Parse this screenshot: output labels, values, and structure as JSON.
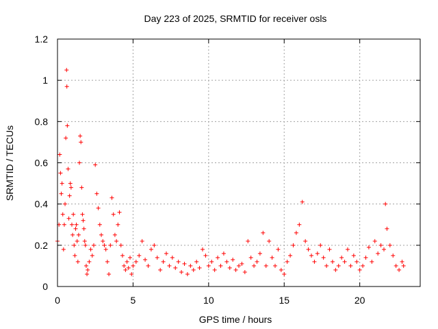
{
  "chart_data": {
    "type": "scatter",
    "title": "Day 223 of 2025, SRMTID for receiver osls",
    "xlabel": "GPS time / hours",
    "ylabel": "SRMTID / TECUs",
    "xlim": [
      0,
      24
    ],
    "ylim": [
      0,
      1.2
    ],
    "x_ticks": [
      0,
      5,
      10,
      15,
      20
    ],
    "x_tick_labels": [
      "0",
      "5",
      "10",
      "15",
      "20"
    ],
    "y_ticks": [
      0,
      0.2,
      0.4,
      0.6,
      0.8,
      1.0,
      1.2
    ],
    "y_tick_labels": [
      "0",
      "0.2",
      "0.4",
      "0.6",
      "0.8",
      "1",
      "1.2"
    ],
    "grid": true,
    "marker": "+",
    "color": "#ff0000",
    "series": [
      {
        "name": "SRMTID",
        "x": [
          0.0,
          0.1,
          0.15,
          0.2,
          0.25,
          0.3,
          0.35,
          0.4,
          0.45,
          0.5,
          0.55,
          0.6,
          0.62,
          0.65,
          0.7,
          0.75,
          0.8,
          0.85,
          0.9,
          0.95,
          1.0,
          1.05,
          1.1,
          1.15,
          1.2,
          1.25,
          1.3,
          1.35,
          1.4,
          1.45,
          1.5,
          1.55,
          1.6,
          1.65,
          1.7,
          1.75,
          1.8,
          1.85,
          1.9,
          1.95,
          2.0,
          2.1,
          2.2,
          2.3,
          2.4,
          2.5,
          2.6,
          2.7,
          2.8,
          2.9,
          3.0,
          3.1,
          3.2,
          3.3,
          3.4,
          3.5,
          3.6,
          3.7,
          3.8,
          3.9,
          4.0,
          4.1,
          4.2,
          4.3,
          4.4,
          4.5,
          4.6,
          4.7,
          4.8,
          4.9,
          5.0,
          5.2,
          5.4,
          5.6,
          5.8,
          6.0,
          6.2,
          6.4,
          6.6,
          6.8,
          7.0,
          7.2,
          7.4,
          7.6,
          7.8,
          8.0,
          8.2,
          8.4,
          8.6,
          8.8,
          9.0,
          9.2,
          9.4,
          9.6,
          9.8,
          10.0,
          10.2,
          10.4,
          10.6,
          10.8,
          11.0,
          11.2,
          11.4,
          11.6,
          11.8,
          12.0,
          12.2,
          12.4,
          12.6,
          12.8,
          13.0,
          13.2,
          13.4,
          13.6,
          13.8,
          14.0,
          14.2,
          14.4,
          14.6,
          14.8,
          15.0,
          15.2,
          15.4,
          15.6,
          15.8,
          16.0,
          16.2,
          16.4,
          16.6,
          16.8,
          17.0,
          17.2,
          17.4,
          17.6,
          17.8,
          18.0,
          18.2,
          18.4,
          18.6,
          18.8,
          19.0,
          19.2,
          19.4,
          19.6,
          19.8,
          20.0,
          20.2,
          20.4,
          20.6,
          20.8,
          21.0,
          21.2,
          21.4,
          21.6,
          21.7,
          21.8,
          22.0,
          22.2,
          22.4,
          22.6,
          22.8,
          22.9
        ],
        "y": [
          0.22,
          0.3,
          0.64,
          0.55,
          0.45,
          0.5,
          0.35,
          0.18,
          0.3,
          0.4,
          0.72,
          1.05,
          0.97,
          0.78,
          0.57,
          0.33,
          0.44,
          0.5,
          0.48,
          0.3,
          0.25,
          0.35,
          0.2,
          0.15,
          0.28,
          0.3,
          0.22,
          0.12,
          0.25,
          0.6,
          0.73,
          0.7,
          0.48,
          0.35,
          0.32,
          0.28,
          0.22,
          0.2,
          0.1,
          0.06,
          0.08,
          0.12,
          0.18,
          0.15,
          0.2,
          0.59,
          0.45,
          0.38,
          0.3,
          0.25,
          0.22,
          0.2,
          0.18,
          0.12,
          0.06,
          0.2,
          0.43,
          0.35,
          0.25,
          0.22,
          0.3,
          0.36,
          0.2,
          0.15,
          0.1,
          0.08,
          0.12,
          0.09,
          0.14,
          0.06,
          0.1,
          0.12,
          0.15,
          0.22,
          0.13,
          0.1,
          0.18,
          0.2,
          0.14,
          0.08,
          0.12,
          0.16,
          0.1,
          0.14,
          0.09,
          0.12,
          0.07,
          0.11,
          0.06,
          0.1,
          0.08,
          0.12,
          0.09,
          0.18,
          0.15,
          0.1,
          0.12,
          0.08,
          0.14,
          0.1,
          0.16,
          0.12,
          0.09,
          0.13,
          0.08,
          0.1,
          0.11,
          0.07,
          0.22,
          0.14,
          0.1,
          0.12,
          0.16,
          0.26,
          0.1,
          0.22,
          0.14,
          0.1,
          0.18,
          0.08,
          0.06,
          0.12,
          0.15,
          0.2,
          0.26,
          0.3,
          0.41,
          0.22,
          0.18,
          0.15,
          0.12,
          0.16,
          0.2,
          0.14,
          0.1,
          0.18,
          0.12,
          0.08,
          0.1,
          0.14,
          0.12,
          0.18,
          0.1,
          0.15,
          0.12,
          0.08,
          0.1,
          0.14,
          0.19,
          0.12,
          0.22,
          0.16,
          0.2,
          0.18,
          0.4,
          0.28,
          0.2,
          0.15,
          0.1,
          0.08,
          0.12,
          0.1
        ]
      }
    ]
  }
}
